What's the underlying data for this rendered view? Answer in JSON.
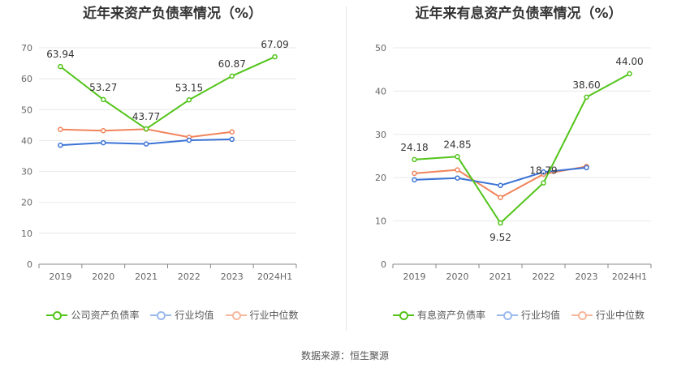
{
  "source_note": "数据来源：恒生聚源",
  "chart_data": [
    {
      "type": "line",
      "title": "近年来资产负债率情况（%）",
      "categories": [
        "2019",
        "2020",
        "2021",
        "2022",
        "2023",
        "2024H1"
      ],
      "ylim": [
        0,
        70
      ],
      "yticks": [
        0,
        10,
        20,
        30,
        40,
        50,
        60,
        70
      ],
      "series": [
        {
          "name": "公司资产负债率",
          "color": "#52c41a",
          "values": [
            63.94,
            53.27,
            43.77,
            53.15,
            60.87,
            67.09
          ],
          "labels": [
            "63.94",
            "53.27",
            "43.77",
            "53.15",
            "60.87",
            "67.09"
          ]
        },
        {
          "name": "行业均值",
          "color": "#3b73d6",
          "values": [
            38.5,
            39.3,
            38.9,
            40.1,
            40.4,
            null
          ]
        },
        {
          "name": "行业中位数",
          "color": "#f0845a",
          "values": [
            43.6,
            43.2,
            43.7,
            41.1,
            42.8,
            null
          ]
        }
      ]
    },
    {
      "type": "line",
      "title": "近年来有息资产负债率情况（%）",
      "categories": [
        "2019",
        "2020",
        "2021",
        "2022",
        "2023",
        "2024H1"
      ],
      "ylim": [
        0,
        50
      ],
      "yticks": [
        0,
        10,
        20,
        30,
        40,
        50
      ],
      "series": [
        {
          "name": "有息资产负债率",
          "color": "#52c41a",
          "values": [
            24.18,
            24.85,
            9.52,
            18.79,
            38.6,
            44.0
          ],
          "labels": [
            "24.18",
            "24.85",
            "9.52",
            "18.79",
            "38.60",
            "44.00"
          ]
        },
        {
          "name": "行业均值",
          "color": "#3b73d6",
          "values": [
            19.5,
            19.9,
            18.2,
            21.3,
            22.3,
            null
          ]
        },
        {
          "name": "行业中位数",
          "color": "#f0845a",
          "values": [
            21.0,
            21.8,
            15.4,
            20.8,
            22.6,
            null
          ]
        }
      ]
    }
  ]
}
